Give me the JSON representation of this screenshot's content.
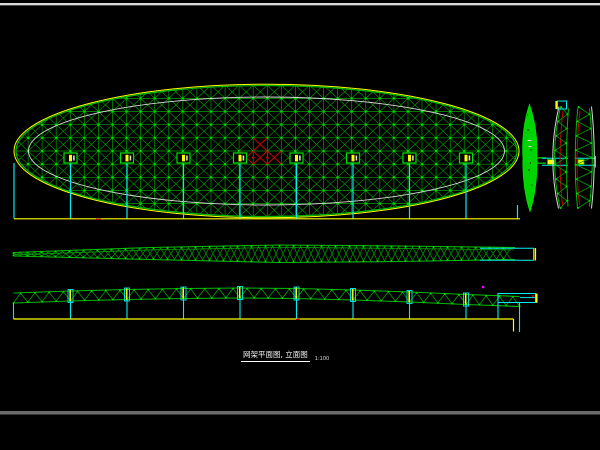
{
  "sheet": {
    "background": "#000000",
    "top_border_color": "#d8d8d8",
    "bottom_border_color": "#6a6a6a"
  },
  "title_block": {
    "title": "网架平面图, 立面图",
    "scale": "1:100"
  },
  "palette": {
    "mesh_green": "#00a000",
    "chord_green": "#00b900",
    "node_green": "#00e000",
    "fill_green": "#00d400",
    "yellow": "#ffff00",
    "cyan": "#00f0f0",
    "red": "#c80000",
    "white": "#d9d9d9",
    "magenta": "#ff00ff"
  }
}
